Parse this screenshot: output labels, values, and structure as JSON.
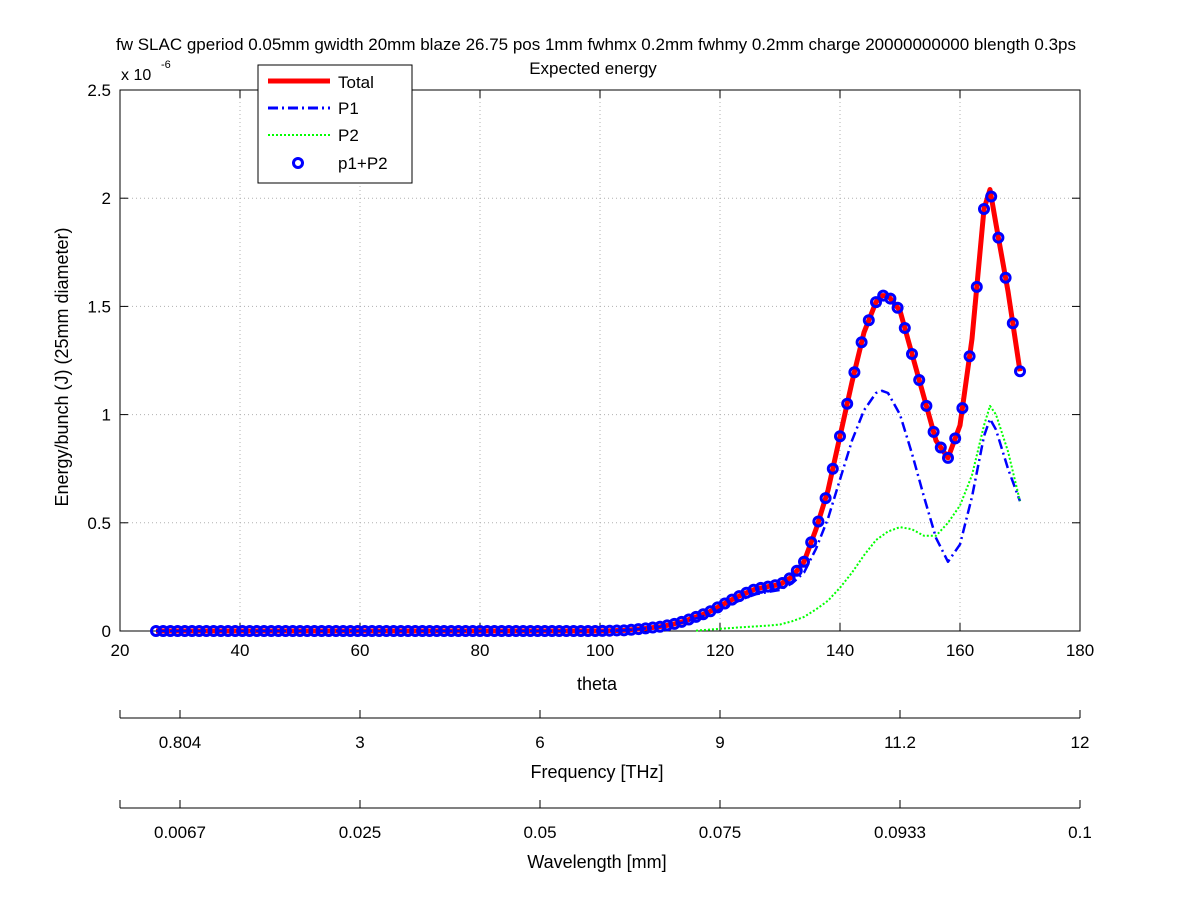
{
  "figure": {
    "title_line1": "fw SLAC gperiod 0.05mm gwidth 20mm blaze 26.75 pos 1mm fwhmx 0.2mm fwhmy 0.2mm charge 20000000000 blength 0.3ps",
    "title_line2": "Expected energy",
    "exponent_base": "x 10",
    "exponent_power": "-6"
  },
  "colors": {
    "total": "#ff0000",
    "p1": "#0000ff",
    "p2": "#00ff00",
    "sum_markers": "#0000ff",
    "grid": "#b0b0b0"
  },
  "chart_data": {
    "type": "line",
    "title": "Expected energy",
    "xlabel": "theta",
    "ylabel": "Energy/bunch (J) (25mm diameter)",
    "xlim": [
      20,
      180
    ],
    "ylim": [
      0,
      2.5
    ],
    "y_scale_factor": "x 10^-6",
    "grid": true,
    "legend_position": "top-left",
    "x_ticks": [
      20,
      40,
      60,
      80,
      100,
      120,
      140,
      160,
      180
    ],
    "y_ticks": [
      0,
      0.5,
      1,
      1.5,
      2,
      2.5
    ],
    "y_tick_labels": [
      "0",
      "0.5",
      "1",
      "1.5",
      "2",
      "2.5"
    ],
    "series": [
      {
        "name": "Total",
        "style": "solid-thick",
        "x": [
          26,
          100,
          104,
          107,
          110,
          112,
          114,
          116,
          118,
          120,
          122,
          124,
          126,
          128,
          130,
          132,
          134,
          136,
          138,
          140,
          142,
          144,
          146,
          147,
          148,
          150,
          152,
          154,
          156,
          158,
          160,
          162,
          164,
          165,
          166,
          168,
          170
        ],
        "y": [
          0,
          0,
          0.003,
          0.01,
          0.02,
          0.03,
          0.045,
          0.065,
          0.085,
          0.115,
          0.145,
          0.172,
          0.195,
          0.205,
          0.215,
          0.25,
          0.32,
          0.47,
          0.65,
          0.9,
          1.15,
          1.38,
          1.52,
          1.55,
          1.55,
          1.48,
          1.28,
          1.08,
          0.88,
          0.8,
          0.95,
          1.35,
          1.95,
          2.04,
          1.88,
          1.57,
          1.2
        ]
      },
      {
        "name": "P1",
        "style": "dash-dot",
        "x": [
          26,
          100,
          104,
          107,
          110,
          112,
          114,
          116,
          118,
          120,
          122,
          124,
          126,
          128,
          130,
          132,
          134,
          136,
          138,
          140,
          142,
          144,
          146,
          147,
          148,
          150,
          152,
          154,
          156,
          158,
          160,
          162,
          164,
          165,
          166,
          168,
          170
        ],
        "y": [
          0,
          0,
          0.003,
          0.01,
          0.02,
          0.03,
          0.04,
          0.058,
          0.075,
          0.1,
          0.125,
          0.15,
          0.17,
          0.18,
          0.19,
          0.22,
          0.27,
          0.38,
          0.52,
          0.7,
          0.88,
          1.02,
          1.1,
          1.11,
          1.1,
          1.0,
          0.82,
          0.62,
          0.43,
          0.32,
          0.4,
          0.62,
          0.9,
          0.98,
          0.93,
          0.75,
          0.6
        ]
      },
      {
        "name": "P2",
        "style": "dotted",
        "x": [
          116,
          120,
          124,
          128,
          130,
          132,
          134,
          136,
          138,
          140,
          142,
          144,
          146,
          148,
          150,
          152,
          154,
          156,
          158,
          160,
          162,
          164,
          165,
          166,
          168,
          170
        ],
        "y": [
          0.002,
          0.01,
          0.018,
          0.025,
          0.03,
          0.045,
          0.065,
          0.1,
          0.14,
          0.2,
          0.27,
          0.35,
          0.42,
          0.46,
          0.48,
          0.47,
          0.44,
          0.44,
          0.5,
          0.58,
          0.72,
          0.95,
          1.04,
          1.0,
          0.83,
          0.6
        ]
      },
      {
        "name": "p1+P2",
        "style": "circle-markers",
        "x": [
          26,
          100,
          104,
          107,
          110,
          112,
          114,
          116,
          118,
          120,
          122,
          124,
          126,
          128,
          130,
          132,
          134,
          136,
          138,
          140,
          142,
          144,
          146,
          147,
          148,
          150,
          152,
          154,
          156,
          158,
          160,
          162,
          164,
          165,
          166,
          168,
          170
        ],
        "y": [
          0,
          0,
          0.003,
          0.01,
          0.02,
          0.03,
          0.045,
          0.065,
          0.085,
          0.115,
          0.145,
          0.172,
          0.195,
          0.205,
          0.215,
          0.25,
          0.32,
          0.47,
          0.65,
          0.9,
          1.15,
          1.38,
          1.52,
          1.55,
          1.55,
          1.48,
          1.28,
          1.08,
          0.88,
          0.8,
          0.95,
          1.35,
          1.95,
          2.04,
          1.88,
          1.57,
          1.2
        ]
      }
    ],
    "secondary_axes": [
      {
        "label": "Frequency [THz]",
        "tick_theta": [
          20,
          30,
          60,
          90,
          120,
          150,
          180
        ],
        "tick_labels": [
          "",
          "0.804",
          "3",
          "6",
          "9",
          "11.2",
          "12"
        ]
      },
      {
        "label": "Wavelength [mm]",
        "tick_theta": [
          20,
          30,
          60,
          90,
          120,
          150,
          180
        ],
        "tick_labels": [
          "",
          "0.0067",
          "0.025",
          "0.05",
          "0.075",
          "0.0933",
          "0.1"
        ]
      }
    ]
  }
}
